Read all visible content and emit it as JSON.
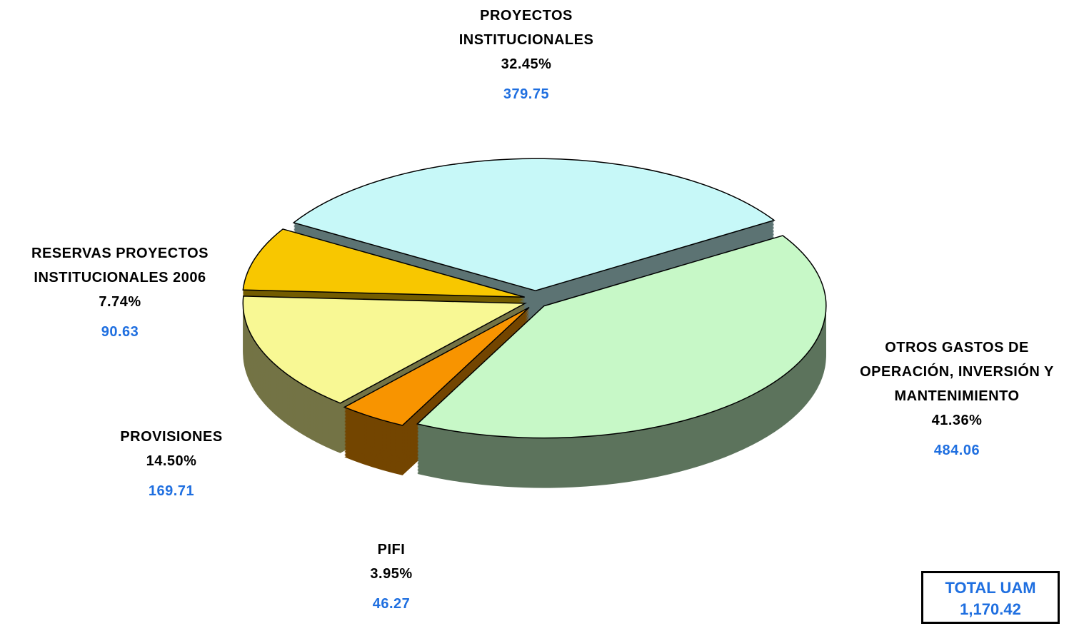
{
  "chart_data": {
    "type": "pie3d",
    "categories": [
      "PROYECTOS INSTITUCIONALES",
      "OTROS GASTOS DE OPERACIÓN, INVERSIÓN Y MANTENIMIENTO",
      "PIFI",
      "PROVISIONES",
      "RESERVAS PROYECTOS INSTITUCIONALES 2006"
    ],
    "values": [
      379.75,
      484.06,
      46.27,
      169.71,
      90.63
    ],
    "percent_labels": [
      "32.45%",
      "41.36%",
      "3.95%",
      "14.50%",
      "7.74%"
    ],
    "colors": [
      "#ccffff",
      "#ccffcc",
      "#ff9900",
      "#ffff99",
      "#ffcc00"
    ],
    "total_title": "TOTAL UAM",
    "total": {
      "value": 1170.42,
      "label": "1,170.42"
    }
  }
}
